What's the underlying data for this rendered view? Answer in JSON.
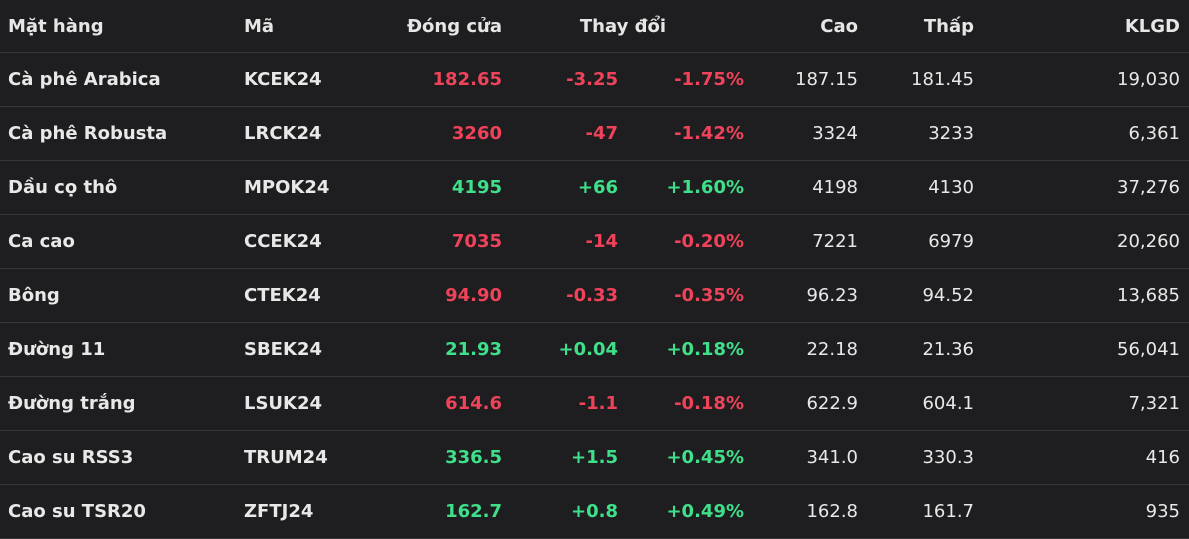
{
  "colors": {
    "background": "#1e1e20",
    "up": "#3fe08a",
    "down": "#f0435a",
    "text": "#e8e8e8",
    "divider": "#38383c"
  },
  "headers": {
    "name": "Mặt hàng",
    "code": "Mã",
    "close": "Đóng cửa",
    "change": "Thay đổi",
    "high": "Cao",
    "low": "Thấp",
    "volume": "KLGD"
  },
  "rows": [
    {
      "name": "Cà phê Arabica",
      "code": "KCEK24",
      "close": "182.65",
      "change": "-3.25",
      "pct": "-1.75%",
      "high": "187.15",
      "low": "181.45",
      "volume": "19,030",
      "trend": "down"
    },
    {
      "name": "Cà phê Robusta",
      "code": "LRCK24",
      "close": "3260",
      "change": "-47",
      "pct": "-1.42%",
      "high": "3324",
      "low": "3233",
      "volume": "6,361",
      "trend": "down"
    },
    {
      "name": "Dầu cọ thô",
      "code": "MPOK24",
      "close": "4195",
      "change": "+66",
      "pct": "+1.60%",
      "high": "4198",
      "low": "4130",
      "volume": "37,276",
      "trend": "up"
    },
    {
      "name": "Ca cao",
      "code": "CCEK24",
      "close": "7035",
      "change": "-14",
      "pct": "-0.20%",
      "high": "7221",
      "low": "6979",
      "volume": "20,260",
      "trend": "down"
    },
    {
      "name": "Bông",
      "code": "CTEK24",
      "close": "94.90",
      "change": "-0.33",
      "pct": "-0.35%",
      "high": "96.23",
      "low": "94.52",
      "volume": "13,685",
      "trend": "down"
    },
    {
      "name": "Đường 11",
      "code": "SBEK24",
      "close": "21.93",
      "change": "+0.04",
      "pct": "+0.18%",
      "high": "22.18",
      "low": "21.36",
      "volume": "56,041",
      "trend": "up"
    },
    {
      "name": "Đường trắng",
      "code": "LSUK24",
      "close": "614.6",
      "change": "-1.1",
      "pct": "-0.18%",
      "high": "622.9",
      "low": "604.1",
      "volume": "7,321",
      "trend": "down"
    },
    {
      "name": "Cao su RSS3",
      "code": "TRUM24",
      "close": "336.5",
      "change": "+1.5",
      "pct": "+0.45%",
      "high": "341.0",
      "low": "330.3",
      "volume": "416",
      "trend": "up"
    },
    {
      "name": "Cao su TSR20",
      "code": "ZFTJ24",
      "close": "162.7",
      "change": "+0.8",
      "pct": "+0.49%",
      "high": "162.8",
      "low": "161.7",
      "volume": "935",
      "trend": "up"
    }
  ]
}
